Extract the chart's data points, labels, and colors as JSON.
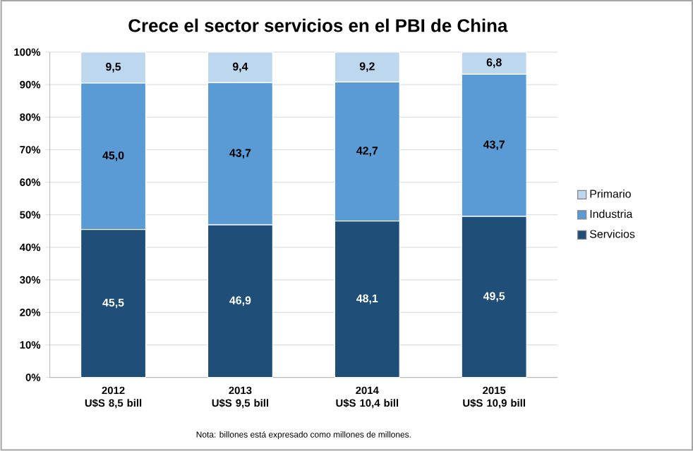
{
  "chart_data": {
    "type": "bar",
    "stacked": true,
    "title": "Crece el sector servicios en el PBI de China",
    "categories": [
      "2012 U$S 8,5 bill",
      "2013 U$S 9,5 bill",
      "2014 U$S 10,4 bill",
      "2015 U$S 10,9 bill"
    ],
    "series": [
      {
        "name": "Servicios",
        "color": "#1f4e79",
        "values": [
          45.5,
          46.9,
          48.1,
          49.5
        ],
        "value_labels": [
          "45,5",
          "46,9",
          "48,1",
          "49,5"
        ]
      },
      {
        "name": "Industria",
        "color": "#5b9bd5",
        "values": [
          45.0,
          43.7,
          42.7,
          43.7
        ],
        "value_labels": [
          "45,0",
          "43,7",
          "42,7",
          "43,7"
        ]
      },
      {
        "name": "Primario",
        "color": "#bdd7ee",
        "values": [
          9.5,
          9.4,
          9.2,
          6.8
        ],
        "value_labels": [
          "9,5",
          "9,4",
          "9,2",
          "6,8"
        ]
      }
    ],
    "ylim": [
      0,
      100
    ],
    "yticks": [
      {
        "value": 0,
        "label": "0%"
      },
      {
        "value": 10,
        "label": "10%"
      },
      {
        "value": 20,
        "label": "20%"
      },
      {
        "value": 30,
        "label": "30%"
      },
      {
        "value": 40,
        "label": "40%"
      },
      {
        "value": 50,
        "label": "50%"
      },
      {
        "value": 60,
        "label": "60%"
      },
      {
        "value": 70,
        "label": "70%"
      },
      {
        "value": 80,
        "label": "80%"
      },
      {
        "value": 90,
        "label": "90%"
      },
      {
        "value": 100,
        "label": "100%"
      }
    ],
    "grid": "y",
    "legend": "right",
    "annotations": [
      "Nota: billones está expresado como millones de millones."
    ]
  }
}
